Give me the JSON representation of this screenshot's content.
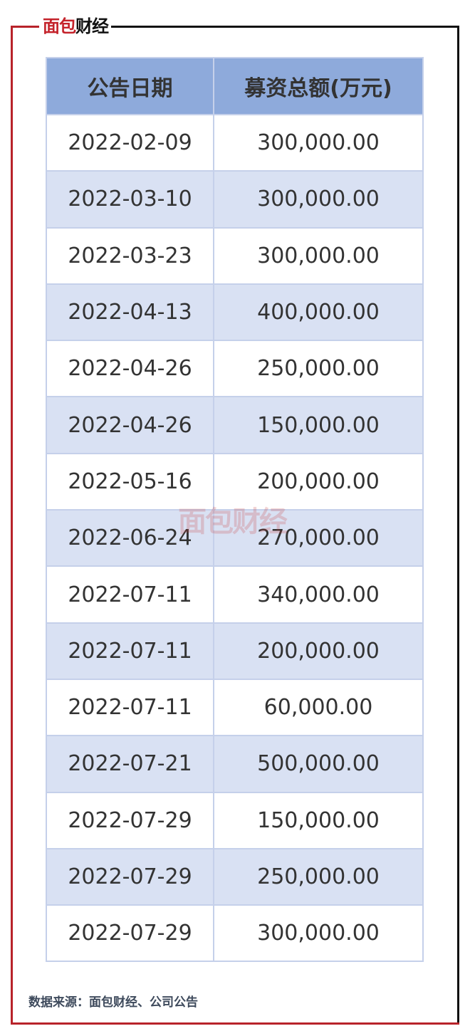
{
  "logo": {
    "text": "面包财经",
    "red_part": "面包",
    "black_part": "财经"
  },
  "table": {
    "headers": [
      "公告日期",
      "募资总额(万元)"
    ],
    "rows": [
      [
        "2022-02-09",
        "300,000.00"
      ],
      [
        "2022-03-10",
        "300,000.00"
      ],
      [
        "2022-03-23",
        "300,000.00"
      ],
      [
        "2022-04-13",
        "400,000.00"
      ],
      [
        "2022-04-26",
        "250,000.00"
      ],
      [
        "2022-04-26",
        "150,000.00"
      ],
      [
        "2022-05-16",
        "200,000.00"
      ],
      [
        "2022-06-24",
        "270,000.00"
      ],
      [
        "2022-07-11",
        "340,000.00"
      ],
      [
        "2022-07-11",
        "200,000.00"
      ],
      [
        "2022-07-11",
        "60,000.00"
      ],
      [
        "2022-07-21",
        "500,000.00"
      ],
      [
        "2022-07-29",
        "150,000.00"
      ],
      [
        "2022-07-29",
        "250,000.00"
      ],
      [
        "2022-07-29",
        "300,000.00"
      ]
    ]
  },
  "watermark": "面包财经",
  "source": "数据来源：面包财经、公司公告",
  "colors": {
    "header_bg": "#8eaadb",
    "alt_row_bg": "#d9e1f3",
    "frame_red": "#b8232a",
    "frame_black": "#111111"
  }
}
